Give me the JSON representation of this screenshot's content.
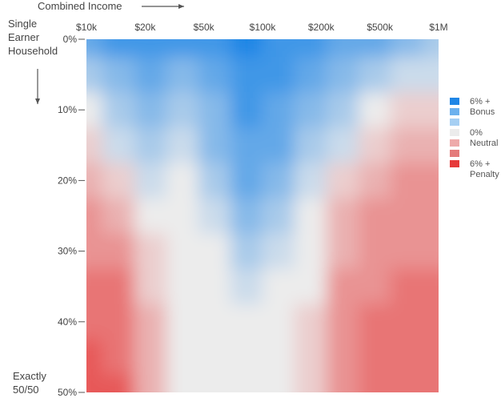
{
  "chart_data": {
    "type": "heatmap",
    "xlabel": "Combined Income",
    "ylabel": [
      "Single",
      "Earner",
      "Household"
    ],
    "y_end_label": [
      "Exactly",
      "50/50"
    ],
    "x_ticks": [
      "$10k",
      "$20k",
      "$50k",
      "$100k",
      "$200k",
      "$500k",
      "$1M"
    ],
    "y_ticks": [
      "0%",
      "10%",
      "20%",
      "30%",
      "40%",
      "50%"
    ],
    "x_values": [
      "$10k",
      "$20k",
      "$30k",
      "$50k",
      "$70k",
      "$100k",
      "$150k",
      "$200k",
      "$300k",
      "$500k",
      "$750k",
      "$1M"
    ],
    "y_values": [
      0,
      5,
      10,
      15,
      20,
      25,
      30,
      35,
      40,
      45,
      50
    ],
    "values": [
      [
        4,
        5,
        5,
        5,
        5,
        6,
        5,
        5,
        4,
        4,
        3,
        2
      ],
      [
        2,
        3,
        4,
        3,
        4,
        5,
        5,
        4,
        3,
        2,
        1,
        1
      ],
      [
        0,
        2,
        3,
        2,
        3,
        5,
        4,
        3,
        2,
        0,
        -1,
        -1
      ],
      [
        -1,
        1,
        2,
        1,
        3,
        4,
        4,
        2,
        1,
        -1,
        -2,
        -2
      ],
      [
        -2,
        -1,
        1,
        0,
        2,
        4,
        3,
        1,
        -1,
        -2,
        -3,
        -3
      ],
      [
        -3,
        -2,
        0,
        0,
        1,
        3,
        2,
        0,
        -2,
        -3,
        -3,
        -3
      ],
      [
        -3,
        -3,
        -1,
        0,
        0,
        2,
        1,
        0,
        -2,
        -3,
        -3,
        -3
      ],
      [
        -4,
        -4,
        -1,
        0,
        0,
        1,
        0,
        0,
        -3,
        -3,
        -4,
        -4
      ],
      [
        -4,
        -4,
        -2,
        0,
        0,
        0,
        0,
        -1,
        -3,
        -4,
        -4,
        -4
      ],
      [
        -5,
        -4,
        -2,
        0,
        0,
        0,
        0,
        -1,
        -3,
        -4,
        -4,
        -4
      ],
      [
        -5,
        -5,
        -2,
        0,
        0,
        0,
        0,
        -1,
        -3,
        -4,
        -4,
        -4
      ]
    ],
    "legend": [
      {
        "label": [
          "6% +",
          "Bonus"
        ],
        "color": "#1f86e6"
      },
      {
        "label": [],
        "color": "#6cb1ee"
      },
      {
        "label": [],
        "color": "#a6cff3"
      },
      {
        "label": [
          "0%",
          "Neutral"
        ],
        "color": "#ececec"
      },
      {
        "label": [],
        "color": "#eeaaaa"
      },
      {
        "label": [],
        "color": "#e47b7b"
      },
      {
        "label": [
          "6% +",
          "Penalty"
        ],
        "color": "#e63a3a"
      }
    ],
    "colors": {
      "bonus": "#1f86e6",
      "neutral": "#ececec",
      "penalty": "#e63a3a"
    }
  }
}
